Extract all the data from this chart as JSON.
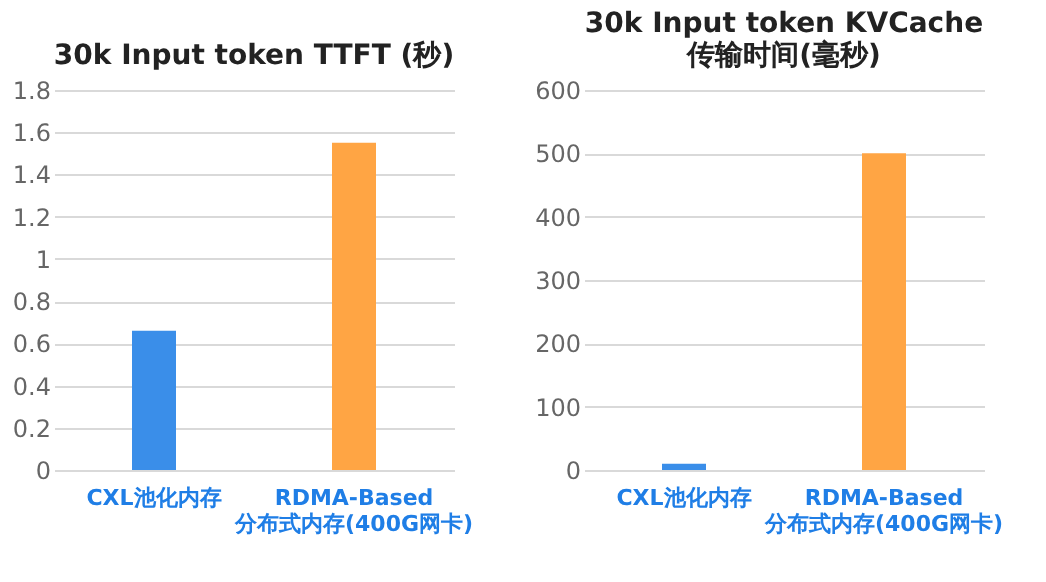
{
  "chart_data": [
    {
      "type": "bar",
      "title": "30k Input token TTFT (秒)",
      "categories": [
        "CXL池化内存",
        "RDMA-Based 分布式内存(400G网卡)"
      ],
      "values": [
        0.66,
        1.55
      ],
      "colors": [
        "#3a8ee9",
        "#ffa544"
      ],
      "ylim": [
        0,
        1.8
      ],
      "yticks": [
        0,
        0.2,
        0.4,
        0.6,
        0.8,
        1,
        1.2,
        1.4,
        1.6,
        1.8
      ],
      "grid": "y"
    },
    {
      "type": "bar",
      "title": "30k Input token KVCache 传输时间(毫秒)",
      "categories": [
        "CXL池化内存",
        "RDMA-Based 分布式内存(400G网卡)"
      ],
      "values": [
        10,
        500
      ],
      "colors": [
        "#3a8ee9",
        "#ffa544"
      ],
      "ylim": [
        0,
        600
      ],
      "yticks": [
        0,
        100,
        200,
        300,
        400,
        500,
        600
      ],
      "grid": "y"
    }
  ]
}
